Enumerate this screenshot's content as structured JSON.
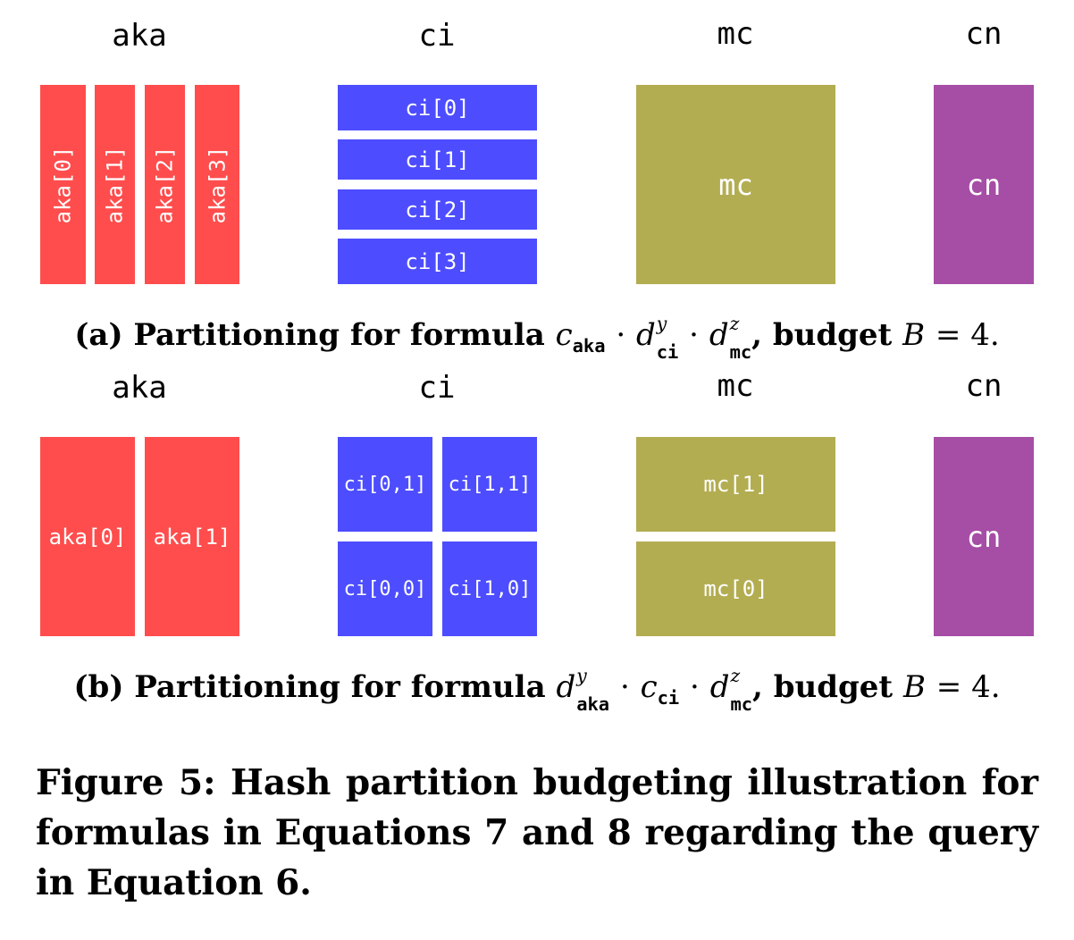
{
  "colors": {
    "aka": "#ff4d4d",
    "ci": "#4d4dff",
    "mc": "#b3ad52",
    "cn": "#a64da6"
  },
  "panel_a": {
    "labels": {
      "aka": "aka",
      "ci": "ci",
      "mc": "mc",
      "cn": "cn"
    },
    "aka_parts": [
      "aka[0]",
      "aka[1]",
      "aka[2]",
      "aka[3]"
    ],
    "ci_parts": [
      "ci[0]",
      "ci[1]",
      "ci[2]",
      "ci[3]"
    ],
    "mc_block": "mc",
    "cn_block": "cn",
    "caption": {
      "prefix": "(a) Partitioning for formula",
      "c": "c",
      "sub1": "aka",
      "dot": "·",
      "d": "d",
      "sup_y": "y",
      "sub2": "ci",
      "sup_z": "z",
      "sub3": "mc",
      "budget": ", budget",
      "B": "B",
      "eq": "= 4."
    }
  },
  "panel_b": {
    "labels": {
      "aka": "aka",
      "ci": "ci",
      "mc": "mc",
      "cn": "cn"
    },
    "aka_parts": [
      "aka[0]",
      "aka[1]"
    ],
    "ci_parts": {
      "top_left": "ci[0,1]",
      "top_right": "ci[1,1]",
      "bottom_left": "ci[0,0]",
      "bottom_right": "ci[1,0]"
    },
    "mc_parts": {
      "top": "mc[1]",
      "bottom": "mc[0]"
    },
    "cn_block": "cn",
    "caption": {
      "prefix": "(b) Partitioning for formula",
      "d": "d",
      "sup_y": "y",
      "sub1": "aka",
      "dot": "·",
      "c": "c",
      "sub2": "ci",
      "sup_z": "z",
      "sub3": "mc",
      "budget": ", budget",
      "B": "B",
      "eq": "= 4."
    }
  },
  "figure_caption": "Figure 5: Hash partition budgeting illustration for formulas in Equations 7 and 8 regarding the query in Equation 6."
}
